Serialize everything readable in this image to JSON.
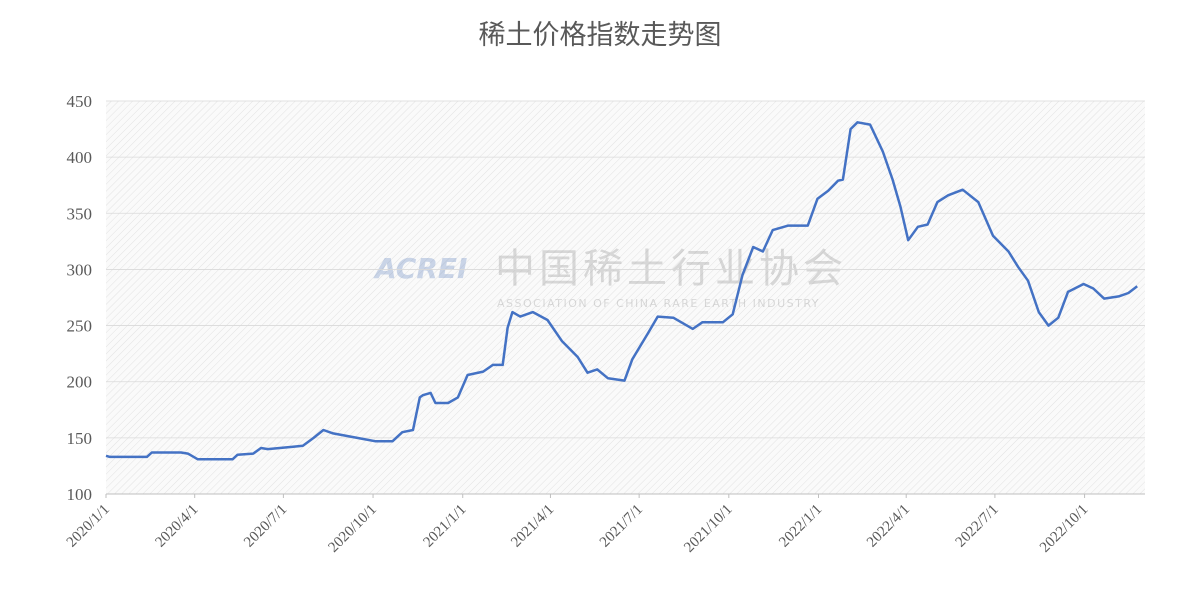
{
  "chart_data": {
    "type": "line",
    "title": "稀土价格指数走势图",
    "watermark": {
      "logo": "ACREI",
      "name": "中国稀土行业协会",
      "subtitle": "ASSOCIATION OF CHINA RARE EARTH INDUSTRY"
    },
    "x": [
      "2020/1/1",
      "2020/1/5",
      "2020/2/12",
      "2020/2/17",
      "2020/3/18",
      "2020/3/25",
      "2020/4/4",
      "2020/5/10",
      "2020/5/15",
      "2020/5/31",
      "2020/6/8",
      "2020/6/15",
      "2020/7/11",
      "2020/7/21",
      "2020/8/1",
      "2020/8/11",
      "2020/8/21",
      "2020/9/21",
      "2020/10/3",
      "2020/10/21",
      "2020/10/31",
      "2020/11/11",
      "2020/11/18",
      "2020/11/21",
      "2020/11/29",
      "2020/12/4",
      "2020/12/17",
      "2020/12/27",
      "2021/1/6",
      "2021/1/22",
      "2021/2/1",
      "2021/2/11",
      "2021/2/16",
      "2021/2/21",
      "2021/3/1",
      "2021/3/14",
      "2021/3/29",
      "2021/4/13",
      "2021/4/29",
      "2021/5/9",
      "2021/5/19",
      "2021/5/30",
      "2021/6/16",
      "2021/6/24",
      "2021/7/10",
      "2021/7/20",
      "2021/8/5",
      "2021/8/25",
      "2021/9/4",
      "2021/9/25",
      "2021/10/5",
      "2021/10/15",
      "2021/10/26",
      "2021/11/5",
      "2021/11/15",
      "2021/12/1",
      "2021/12/21",
      "2021/12/31",
      "2022/1/11",
      "2022/1/21",
      "2022/1/26",
      "2022/2/3",
      "2022/2/10",
      "2022/2/23",
      "2022/3/8",
      "2022/3/18",
      "2022/3/26",
      "2022/4/3",
      "2022/4/13",
      "2022/4/23",
      "2022/5/3",
      "2022/5/14",
      "2022/5/29",
      "2022/6/14",
      "2022/6/29",
      "2022/7/15",
      "2022/7/25",
      "2022/8/4",
      "2022/8/15",
      "2022/8/25",
      "2022/9/4",
      "2022/9/14",
      "2022/9/30",
      "2022/10/10",
      "2022/10/21",
      "2022/11/5",
      "2022/11/15",
      "2022/11/24"
    ],
    "series": [
      {
        "name": "稀土价格指数",
        "color": "#4472c4",
        "values": [
          134,
          133,
          133,
          137,
          137,
          136,
          131,
          131,
          135,
          136,
          141,
          140,
          142,
          143,
          150,
          157,
          154,
          149,
          147,
          147,
          155,
          157,
          186,
          188,
          190,
          181,
          181,
          186,
          206,
          209,
          215,
          215,
          248,
          262,
          258,
          262,
          255,
          236,
          222,
          208,
          211,
          203,
          201,
          220,
          243,
          258,
          257,
          247,
          253,
          253,
          260,
          295,
          320,
          316,
          335,
          339,
          339,
          363,
          370,
          379,
          380,
          425,
          431,
          429,
          405,
          380,
          356,
          326,
          338,
          340,
          360,
          366,
          371,
          360,
          330,
          316,
          302,
          290,
          262,
          250,
          257,
          280,
          287,
          283,
          274,
          276,
          279,
          285
        ]
      }
    ],
    "xlim": [
      "2020/1/1",
      "2022/12/2"
    ],
    "xticks": [
      "2020/1/1",
      "2020/4/1",
      "2020/7/1",
      "2020/10/1",
      "2021/1/1",
      "2021/4/1",
      "2021/7/1",
      "2021/10/1",
      "2022/1/1",
      "2022/4/1",
      "2022/7/1",
      "2022/10/1"
    ],
    "ylim": [
      100,
      450
    ],
    "yticks": [
      100,
      150,
      200,
      250,
      300,
      350,
      400,
      450
    ],
    "grid": true
  }
}
